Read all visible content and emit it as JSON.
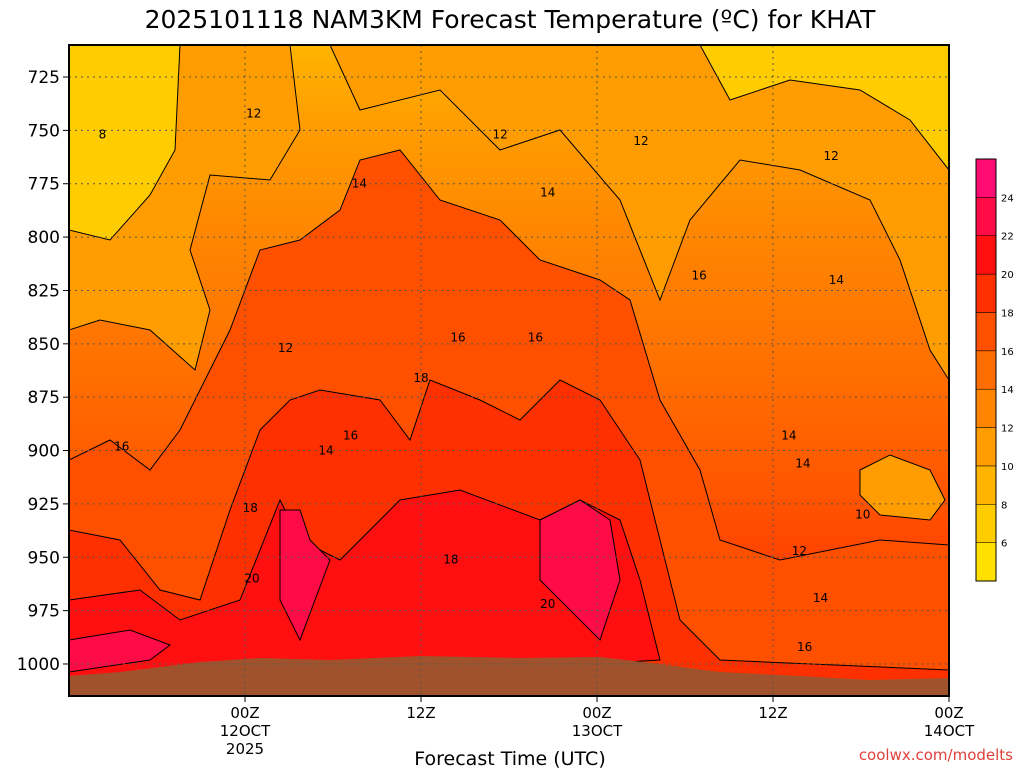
{
  "chart_data": {
    "type": "heatmap",
    "title": "2025101118 NAM3KM Forecast Temperature (ºC) for KHAT",
    "xlabel": "Forecast Time (UTC)",
    "credit": "coolwx.com/modelts",
    "y_axis": {
      "name": "pressure",
      "ticks": [
        725,
        750,
        775,
        800,
        825,
        850,
        875,
        900,
        925,
        950,
        975,
        1000
      ],
      "range": [
        710,
        1015
      ]
    },
    "x_axis": {
      "range_hours": [
        -10,
        40
      ],
      "ticks": [
        {
          "hour": 0,
          "label": "00Z",
          "sub1": "12OCT",
          "sub2": "2025"
        },
        {
          "hour": 10,
          "label": "12Z",
          "sub1": "",
          "sub2": ""
        },
        {
          "hour": 20,
          "label": "00Z",
          "sub1": "13OCT",
          "sub2": ""
        },
        {
          "hour": 30,
          "label": "12Z",
          "sub1": "",
          "sub2": ""
        },
        {
          "hour": 40,
          "label": "00Z",
          "sub1": "14OCT",
          "sub2": ""
        }
      ]
    },
    "colorbar": {
      "levels": [
        4,
        6,
        8,
        10,
        12,
        14,
        16,
        18,
        20,
        22,
        24,
        26
      ],
      "labels": [
        "6",
        "8",
        "10",
        "12",
        "14",
        "16",
        "18",
        "20",
        "22",
        "24"
      ],
      "colors": [
        "#ffe000",
        "#ffcc00",
        "#ffb400",
        "#ff9d00",
        "#ff8500",
        "#ff6d00",
        "#ff5000",
        "#ff3000",
        "#ff0f10",
        "#ff0b45",
        "#ff0c72"
      ]
    },
    "contour_labels": [
      {
        "text": "12",
        "hour": 0.5,
        "p": 742
      },
      {
        "text": "8",
        "hour": -8.1,
        "p": 752
      },
      {
        "text": "12",
        "hour": 14.5,
        "p": 752
      },
      {
        "text": "12",
        "hour": 22.5,
        "p": 755
      },
      {
        "text": "12",
        "hour": 33.3,
        "p": 762
      },
      {
        "text": "14",
        "hour": 6.5,
        "p": 775
      },
      {
        "text": "14",
        "hour": 17.2,
        "p": 779
      },
      {
        "text": "14",
        "hour": 33.6,
        "p": 820
      },
      {
        "text": "16",
        "hour": 25.8,
        "p": 818
      },
      {
        "text": "16",
        "hour": 12.1,
        "p": 847
      },
      {
        "text": "16",
        "hour": 16.5,
        "p": 847
      },
      {
        "text": "12",
        "hour": 2.3,
        "p": 852
      },
      {
        "text": "18",
        "hour": 10.0,
        "p": 866
      },
      {
        "text": "14",
        "hour": 30.9,
        "p": 893
      },
      {
        "text": "16",
        "hour": -7.0,
        "p": 898
      },
      {
        "text": "16",
        "hour": 6.0,
        "p": 893
      },
      {
        "text": "14",
        "hour": 4.6,
        "p": 900
      },
      {
        "text": "14",
        "hour": 31.7,
        "p": 906
      },
      {
        "text": "18",
        "hour": 0.3,
        "p": 927
      },
      {
        "text": "10",
        "hour": 35.1,
        "p": 930
      },
      {
        "text": "18",
        "hour": 11.7,
        "p": 951
      },
      {
        "text": "12",
        "hour": 31.5,
        "p": 947
      },
      {
        "text": "20",
        "hour": 0.4,
        "p": 960
      },
      {
        "text": "20",
        "hour": 17.2,
        "p": 972
      },
      {
        "text": "14",
        "hour": 32.7,
        "p": 969
      },
      {
        "text": "16",
        "hour": 31.8,
        "p": 992
      }
    ],
    "grid": true
  }
}
